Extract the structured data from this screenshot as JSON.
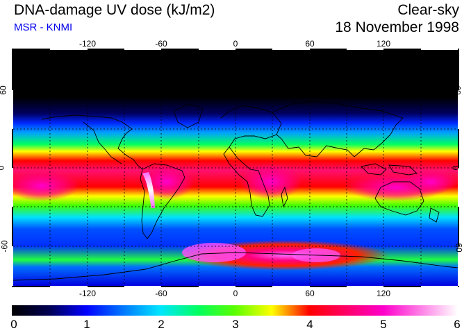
{
  "header": {
    "title": "DNA-damage UV dose (kJ/m2)",
    "source": "MSR - KNMI",
    "mode": "Clear-sky",
    "date": "18 November 1998"
  },
  "map": {
    "projection": "equirectangular",
    "lon_range": [
      -180,
      180
    ],
    "lat_range": [
      -90,
      90
    ],
    "lon_ticks": [
      -120,
      -60,
      0,
      60,
      120
    ],
    "lat_ticks": [
      60,
      0,
      -60
    ],
    "lon_tick_labels": [
      "-120",
      "-60",
      "0",
      "60",
      "120"
    ],
    "lat_tick_labels": [
      "60",
      "0",
      "-60"
    ],
    "gridlines": "dashed every 30 degrees",
    "coastlines": true,
    "polar_night_color": "#000000"
  },
  "colorbar": {
    "min": 0,
    "max": 6,
    "labels": [
      "0",
      "1",
      "2",
      "3",
      "4",
      "5",
      "6"
    ],
    "stops": [
      {
        "value": 0.0,
        "color": "#000000"
      },
      {
        "value": 0.5,
        "color": "#000050"
      },
      {
        "value": 1.0,
        "color": "#0000ff"
      },
      {
        "value": 1.5,
        "color": "#0078ff"
      },
      {
        "value": 2.0,
        "color": "#00e6ff"
      },
      {
        "value": 2.5,
        "color": "#00ff60"
      },
      {
        "value": 3.0,
        "color": "#5aff00"
      },
      {
        "value": 3.5,
        "color": "#ffff00"
      },
      {
        "value": 4.0,
        "color": "#ff0000"
      },
      {
        "value": 4.5,
        "color": "#ff0066"
      },
      {
        "value": 5.0,
        "color": "#ff00cc"
      },
      {
        "value": 6.0,
        "color": "#ffffff"
      }
    ]
  }
}
